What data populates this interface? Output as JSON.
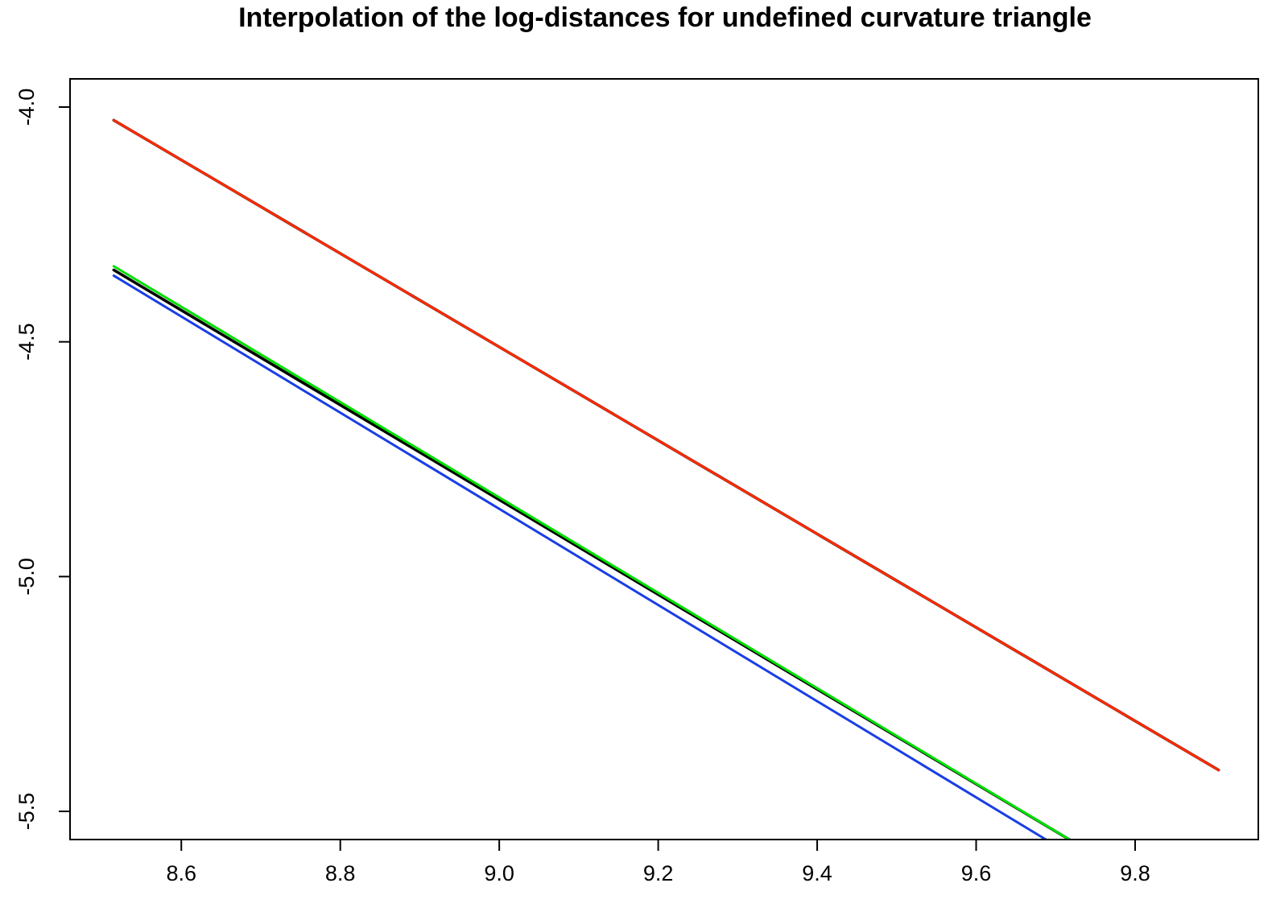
{
  "chart_data": {
    "type": "line",
    "title": "Interpolation of the log-distances for undefined curvature triangle",
    "xlabel": "",
    "ylabel": "",
    "xlim": [
      8.46,
      9.955
    ],
    "ylim": [
      -5.56,
      -3.94
    ],
    "x_ticks": [
      8.6,
      8.8,
      9.0,
      9.2,
      9.4,
      9.6,
      9.8
    ],
    "x_tick_labels": [
      "8.6",
      "8.8",
      "9.0",
      "9.2",
      "9.4",
      "9.6",
      "9.8"
    ],
    "y_ticks": [
      -4.0,
      -4.5,
      -5.0,
      -5.5
    ],
    "y_tick_labels": [
      "-4.0",
      "-4.5",
      "-5.0",
      "-5.5"
    ],
    "grid": false,
    "legend": "none",
    "series": [
      {
        "color": "#000000",
        "x": [
          8.515,
          9.905
        ],
        "y": [
          -4.028,
          -5.412
        ]
      },
      {
        "color": "#ff2a00",
        "x": [
          8.515,
          9.905
        ],
        "y": [
          -4.028,
          -5.412
        ]
      },
      {
        "color": "#000000",
        "x": [
          8.515,
          9.745
        ],
        "y": [
          -4.347,
          -5.588
        ]
      },
      {
        "color": "#00e000",
        "x": [
          8.515,
          9.745
        ],
        "y": [
          -4.339,
          -5.588
        ]
      },
      {
        "color": "#1a3ee6",
        "x": [
          8.515,
          9.715
        ],
        "y": [
          -4.359,
          -5.588
        ]
      }
    ]
  }
}
